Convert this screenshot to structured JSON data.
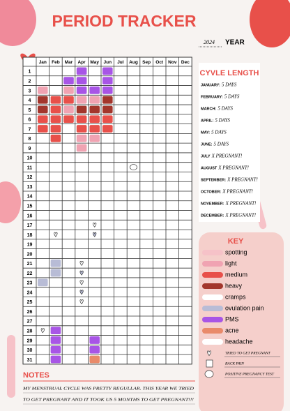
{
  "header": {
    "title": "PERIOD TRACKER",
    "year": "2024",
    "year_label": "YEAR"
  },
  "tracker": {
    "months": [
      "Jan",
      "Feb",
      "Mar",
      "Apr",
      "May",
      "Jun",
      "Jul",
      "Aug",
      "Sep",
      "Oct",
      "Nov",
      "Dec"
    ],
    "days": [
      1,
      2,
      3,
      4,
      5,
      6,
      7,
      8,
      9,
      10,
      11,
      12,
      13,
      14,
      15,
      16,
      17,
      18,
      19,
      20,
      21,
      22,
      23,
      24,
      25,
      26,
      27,
      28,
      29,
      30,
      31
    ]
  },
  "cycle_length": {
    "title": "CYVLE LENGTH",
    "entries": [
      {
        "month": "JANUARY:",
        "value": "5 DAYS"
      },
      {
        "month": "FEBRUARY:",
        "value": "5 DAYS"
      },
      {
        "month": "MARCH:",
        "value": "5 DAYS"
      },
      {
        "month": "APRIL:",
        "value": "5 DAYS"
      },
      {
        "month": "MAY:",
        "value": "5 DAYS"
      },
      {
        "month": "JUNE:",
        "value": "5 DAYS"
      },
      {
        "month": "JULY",
        "value": "X PREGNANT!"
      },
      {
        "month": "AUGUST",
        "value": "X PREGNANT!"
      },
      {
        "month": "SEPTEMBER:",
        "value": "X PREGNANT!"
      },
      {
        "month": "OCTOBER:",
        "value": "X PREGNANT!"
      },
      {
        "month": "NOVEMBER:",
        "value": "X PREGNANT!"
      },
      {
        "month": "DECEMBER:",
        "value": "X PREGNANT!"
      }
    ]
  },
  "key": {
    "title": "KEY",
    "items": [
      "spotting",
      "light",
      "medium",
      "heavy",
      "cramps",
      "ovulation pain",
      "PMS",
      "acne",
      "headache",
      "TRIED TO GET PREGNANT",
      "BACK PAIN",
      "POSITIVE PREGNANCY TEST"
    ]
  },
  "notes": {
    "title": "NOTES",
    "lines": [
      "MY MENSTRUAL CYCLE WAS PRETTY REGULLAR. THIS YEAR WE TRIED",
      "TO GET PREGNANT AND IT TOOK US 5 MONTHS TO GET PREGNANT!!!"
    ]
  }
}
